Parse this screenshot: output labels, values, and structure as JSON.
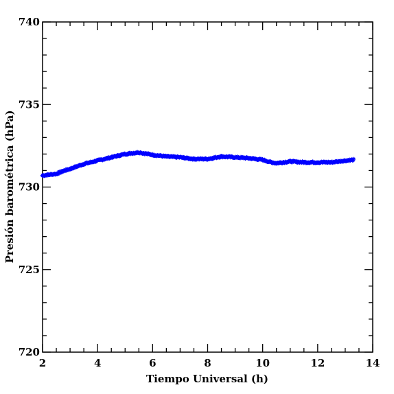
{
  "chart_data": {
    "type": "scatter",
    "title": "",
    "xlabel": "Tiempo Universal (h)",
    "ylabel": "Presión barométrica (hPa)",
    "xlim": [
      2,
      14
    ],
    "ylim": [
      720,
      740
    ],
    "x_ticks": [
      2,
      4,
      6,
      8,
      10,
      12,
      14
    ],
    "y_ticks": [
      720,
      725,
      730,
      735,
      740
    ],
    "x_minor_step": 0.5,
    "y_minor_step": 1,
    "grid": false,
    "marker": "asterisk",
    "color": "#0000ff",
    "series": [
      {
        "x": [
          2.0,
          2.5,
          2.8,
          3.0,
          3.5,
          4.0,
          4.5,
          5.0,
          5.5,
          6.0,
          6.5,
          7.0,
          7.5,
          8.0,
          8.5,
          9.0,
          9.5,
          10.0,
          10.3,
          10.5,
          11.0,
          11.5,
          12.0,
          12.5,
          13.0,
          13.3
        ],
        "y": [
          730.7,
          730.8,
          731.0,
          731.1,
          731.4,
          731.6,
          731.8,
          732.0,
          732.1,
          731.95,
          731.85,
          731.8,
          731.7,
          731.7,
          731.85,
          731.8,
          731.75,
          731.65,
          731.5,
          731.45,
          731.55,
          731.5,
          731.5,
          731.5,
          731.6,
          731.65
        ]
      }
    ]
  }
}
